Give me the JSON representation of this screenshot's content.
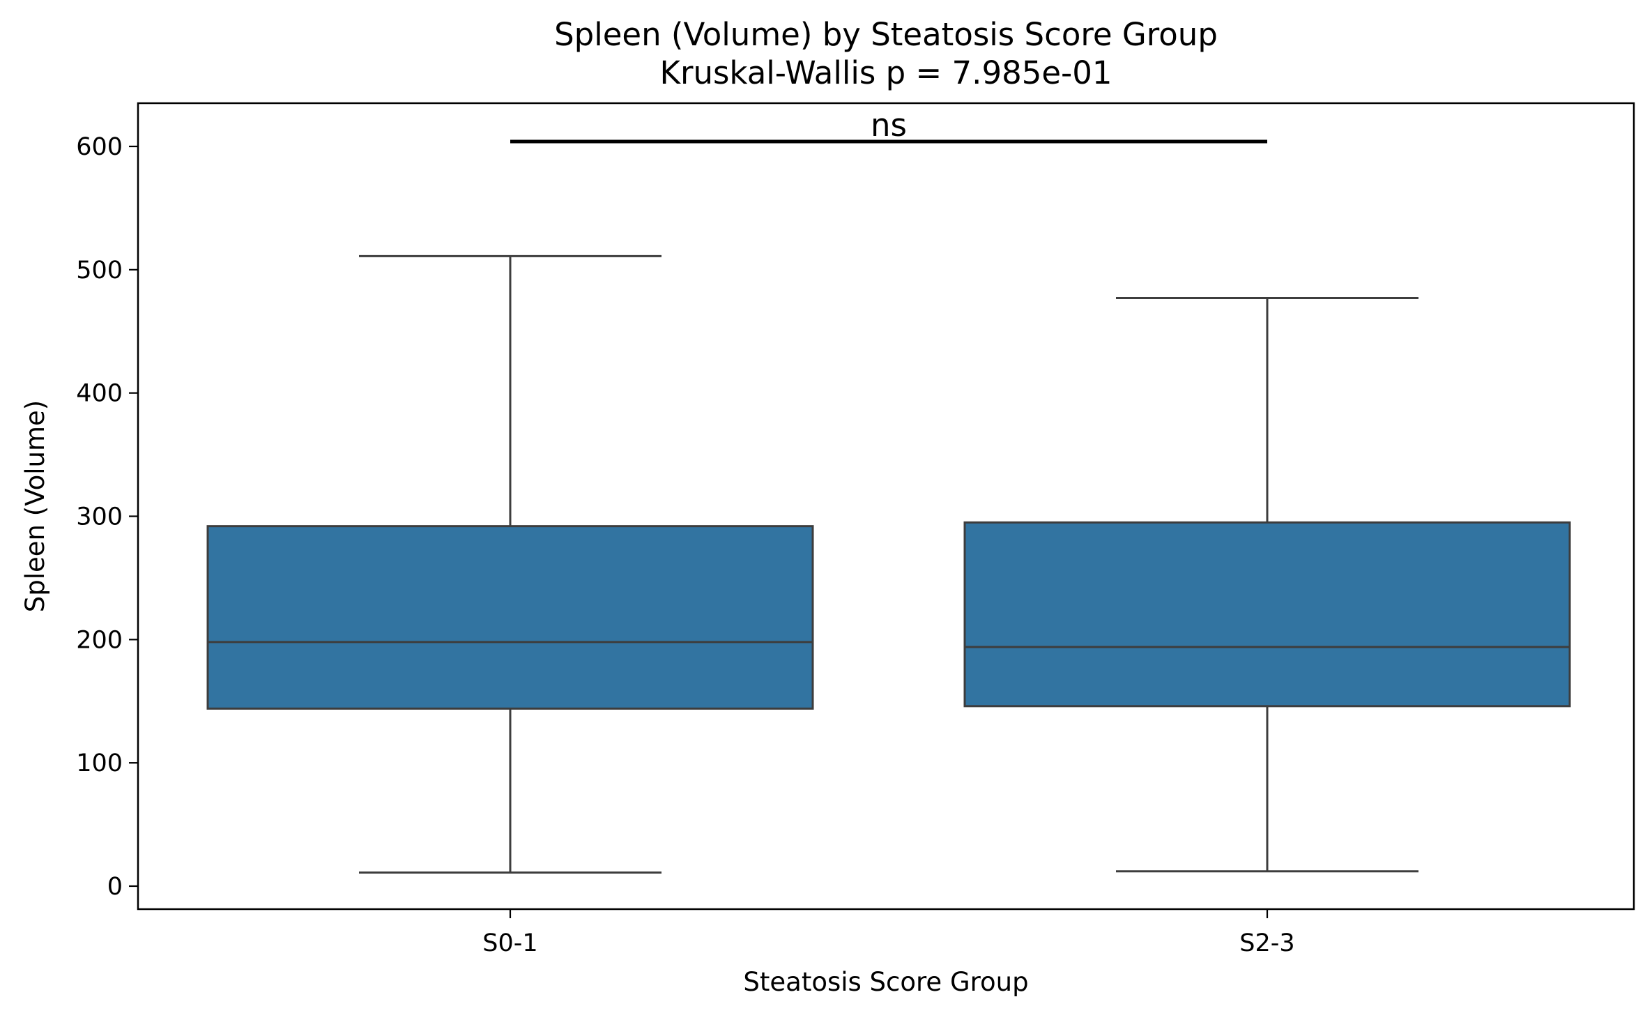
{
  "chart_data": {
    "type": "boxplot",
    "title": "Spleen (Volume) by Steatosis Score Group",
    "subtitle": "Kruskal-Wallis p = 7.985e-01",
    "xlabel": "Steatosis Score Group",
    "ylabel": "Spleen (Volume)",
    "categories": [
      "S0-1",
      "S2-3"
    ],
    "ylim": [
      -18,
      633
    ],
    "yticks": [
      0,
      100,
      200,
      300,
      400,
      500,
      600
    ],
    "boxes": [
      {
        "category": "S0-1",
        "whisker_low": 11,
        "q1": 144,
        "median": 198,
        "q3": 292,
        "whisker_high": 511
      },
      {
        "category": "S2-3",
        "whisker_low": 12,
        "q1": 146,
        "median": 194,
        "q3": 295,
        "whisker_high": 477
      }
    ],
    "significance": {
      "label": "ns",
      "from": "S0-1",
      "to": "S2-3",
      "y": 604
    },
    "box_color": "#3274a1",
    "line_color": "#3d3d3d",
    "grid": false,
    "legend": "none"
  }
}
